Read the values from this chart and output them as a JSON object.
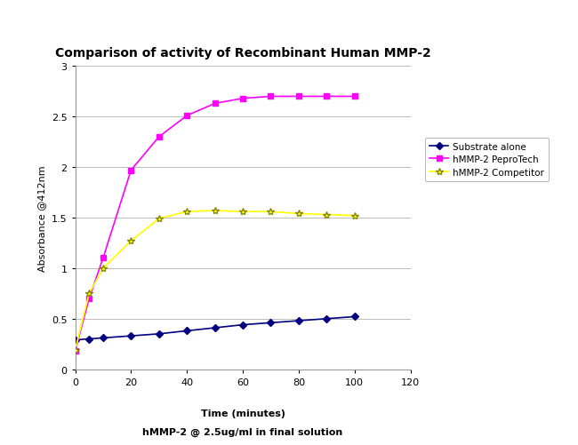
{
  "title": "Comparison of activity of Recombinant Human MMP-2",
  "xlabel_line1": "Time (minutes)",
  "xlabel_line2": "hMMP-2 @ 2.5ug/ml in final solution",
  "ylabel": "Absorbance @412nm",
  "xlim": [
    0,
    120
  ],
  "ylim": [
    0,
    3
  ],
  "xticks": [
    0,
    20,
    40,
    60,
    80,
    100,
    120
  ],
  "yticks": [
    0,
    0.5,
    1.0,
    1.5,
    2.0,
    2.5,
    3.0
  ],
  "substrate_x": [
    0,
    5,
    10,
    20,
    30,
    40,
    50,
    60,
    70,
    80,
    90,
    100
  ],
  "substrate_y": [
    0.29,
    0.3,
    0.31,
    0.33,
    0.35,
    0.38,
    0.41,
    0.44,
    0.46,
    0.48,
    0.5,
    0.52
  ],
  "peprotech_x": [
    0,
    5,
    10,
    20,
    30,
    40,
    50,
    60,
    70,
    80,
    90,
    100
  ],
  "peprotech_y": [
    0.18,
    0.7,
    1.1,
    1.97,
    2.3,
    2.51,
    2.63,
    2.68,
    2.7,
    2.7,
    2.7,
    2.7
  ],
  "competitor_x": [
    0,
    5,
    10,
    20,
    30,
    40,
    50,
    60,
    70,
    80,
    90,
    100
  ],
  "competitor_y": [
    0.19,
    0.75,
    1.0,
    1.27,
    1.49,
    1.56,
    1.57,
    1.56,
    1.56,
    1.54,
    1.53,
    1.52
  ],
  "substrate_color": "#000080",
  "peprotech_color": "#FF00FF",
  "competitor_color": "#FFFF00",
  "background_color": "#FFFFFF",
  "grid_color": "#BBBBBB",
  "legend_labels": [
    "Substrate alone",
    "hMMP-2 PeproTech",
    "hMMP-2 Competitor"
  ],
  "title_fontsize": 10,
  "axis_label_fontsize": 8,
  "tick_fontsize": 8,
  "legend_fontsize": 7.5
}
